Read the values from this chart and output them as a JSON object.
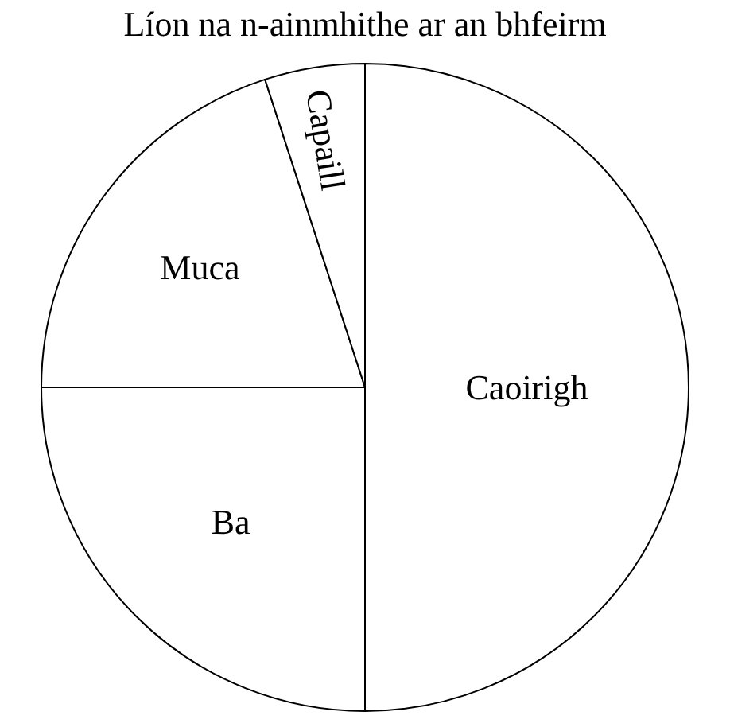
{
  "chart_data": {
    "type": "pie",
    "title": "Líon na n-ainmhithe ar an bhfeirm",
    "categories": [
      "Caoirigh",
      "Ba",
      "Muca",
      "Capaill"
    ],
    "values": [
      50,
      25,
      20,
      5
    ],
    "colors": [
      "#ffffff",
      "#ffffff",
      "#ffffff",
      "#ffffff"
    ],
    "legend": false
  }
}
